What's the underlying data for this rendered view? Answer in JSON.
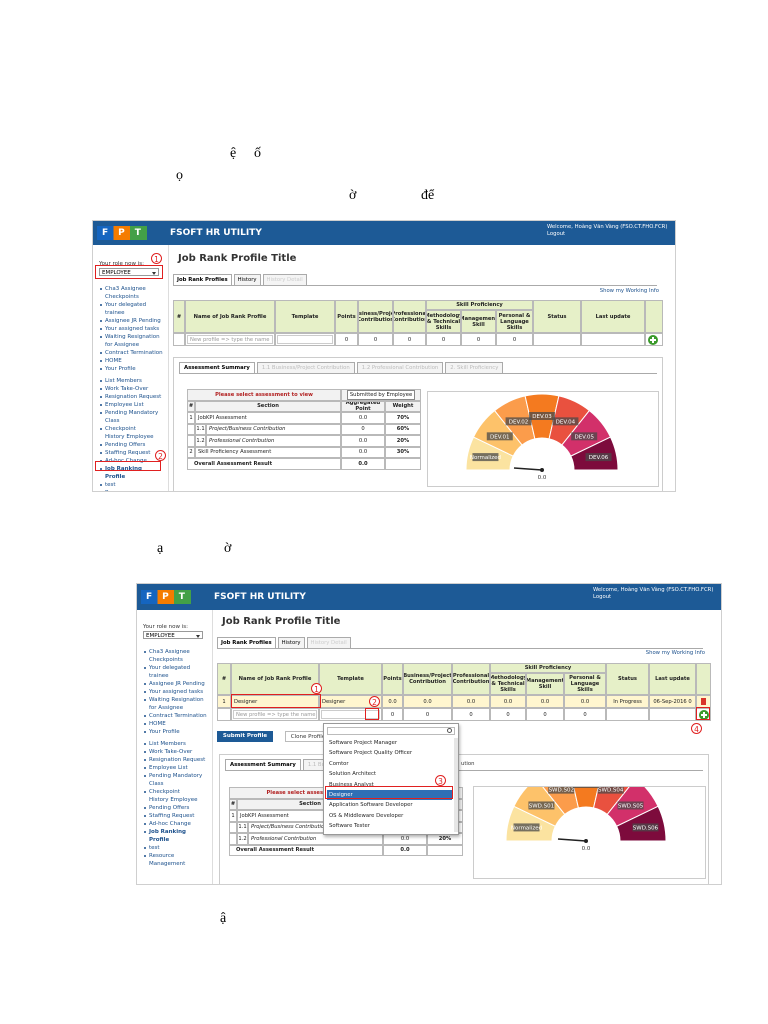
{
  "fragments": [
    "ệ",
    "ố",
    "ọ",
    "ờ",
    "để",
    "ạ",
    "ờ",
    "ậ"
  ],
  "screenshot_1": {
    "logo": "FPT",
    "brand": "FSOFT HR UTILITY",
    "welcome": "Welcome, Hoàng Văn Vàng (FSO.CT.FHO.FCR)",
    "logout": "Logout",
    "role_label": "Your role now is:",
    "role": "EMPLOYEE",
    "menu_1": [
      "Cha3 Assignee Checkpoints",
      "Your delegated trainee",
      "Assignee JR Pending",
      "Your assigned tasks",
      "Waiting Resignation for Assignee",
      "Contract Termination",
      "HOME",
      "Your Profile"
    ],
    "menu_2": [
      "List Members",
      "Work Take-Over",
      "Resignation Request",
      "Employee List",
      "Pending Mandatory Class",
      "Checkpoint History Employee",
      "Pending Offers",
      "Staffing Request",
      "Ad-hoc Change",
      "Job Ranking Profile",
      "test",
      "Resource Management"
    ],
    "page_title": "Job Rank Profile Title",
    "tabs": [
      "Job Rank Profiles",
      "History",
      "History Detail"
    ],
    "show_link": "Show my Working Info",
    "skill_group": "Skill Proficiency",
    "table_header": [
      "#",
      "Name of Job Rank Profile",
      "Template",
      "Points",
      "Business/Project Contribution",
      "Professional Contribution",
      "Methodology & Technical Skills",
      "Management Skill",
      "Personal & Language Skills",
      "Status",
      "Last update"
    ],
    "new_row": {
      "name": "New profile => type the name",
      "values": [
        "0",
        "0",
        "0",
        "0",
        "0",
        "0"
      ]
    },
    "panel_tabs": [
      "Assessment Summary",
      "1.1 Business/Project Contribution",
      "1.2 Professional Contribution",
      "2. Skill Proficiency"
    ],
    "select_prompt": "Please select assessment to view",
    "submitted_by": "Submitted by Employee",
    "assessment_header": [
      "#",
      "Section",
      "Aggregated Point",
      "Weight"
    ],
    "assessment_rows": [
      [
        "1",
        "JobKPI Assessment",
        "0.0",
        "70%"
      ],
      [
        "1.1",
        "Project/Business Contribution",
        "0",
        "60%"
      ],
      [
        "1.2",
        "Professional Contribution",
        "0.0",
        "20%"
      ],
      [
        "2",
        "Skill Proficiency Assessment",
        "0.0",
        "30%"
      ]
    ],
    "overall": [
      "Overall Assessment Result",
      "0.0"
    ],
    "gauge_labels": [
      "Normalized",
      "DEV.01",
      "DEV.02",
      "DEV.03",
      "DEV.04",
      "DEV.05",
      "DEV.06"
    ],
    "gauge_value": "0.0",
    "callouts": [
      "1",
      "2"
    ]
  },
  "screenshot_2": {
    "logo": "FPT",
    "brand": "FSOFT HR UTILITY",
    "welcome": "Welcome, Hoàng Văn Vàng (FSO.CT.FHO.FCR)",
    "logout": "Logout",
    "role_label": "Your role now is:",
    "role": "EMPLOYEE",
    "menu_1": [
      "Cha3 Assignee Checkpoints",
      "Your delegated trainee",
      "Assignee JR Pending",
      "Your assigned tasks",
      "Waiting Resignation for Assignee",
      "Contract Termination",
      "HOME",
      "Your Profile"
    ],
    "menu_2": [
      "List Members",
      "Work Take-Over",
      "Resignation Request",
      "Employee List",
      "Pending Mandatory Class",
      "Checkpoint History Employee",
      "Pending Offers",
      "Staffing Request",
      "Ad-hoc Change",
      "Job Ranking Profile",
      "test",
      "Resource Management"
    ],
    "page_title": "Job Rank Profile Title",
    "tabs": [
      "Job Rank Profiles",
      "History",
      "History Detail"
    ],
    "show_link": "Show my Working Info",
    "skill_group": "Skill Proficiency",
    "table_header": [
      "#",
      "Name of Job Rank Profile",
      "Template",
      "Points",
      "Business/Project Contribution",
      "Professional Contribution",
      "Methodology & Technical Skills",
      "Management Skill",
      "Personal & Language Skills",
      "Status",
      "Last update"
    ],
    "rows": [
      [
        "1",
        "Designer",
        "Designer",
        "0.0",
        "0.0",
        "0.0",
        "0.0",
        "0.0",
        "0.0",
        "In Progress",
        "06-Sep-2016 0"
      ]
    ],
    "new_row": {
      "name": "New profile => type the name",
      "values": [
        "0",
        "0",
        "0",
        "0",
        "0",
        "0"
      ]
    },
    "buttons": [
      "Submit Profile",
      "Clone Profile"
    ],
    "dropdown": [
      "Software Project Manager",
      "Software Project Quality Officer",
      "Comtor",
      "Solution Architect",
      "Business Analyst",
      "Designer",
      "Application Software Developer",
      "OS & Middleware Developer",
      "Software Tester"
    ],
    "dropdown_selected": "Designer",
    "panel_tabs": [
      "Assessment Summary",
      "1.1 Busi"
    ],
    "panel_tab_tail": "ution",
    "select_prompt": "Please select assessment t",
    "assessment_header": [
      "#",
      "Section"
    ],
    "assessment_rows": [
      [
        "1",
        "JobKPI Assessment"
      ],
      [
        "1.1",
        "Project/Business Contributio",
        "0",
        "60%"
      ],
      [
        "1.2",
        "Professional Contribution",
        "0.0",
        "20%"
      ]
    ],
    "overall": [
      "Overall Assessment Result",
      "0.0"
    ],
    "gauge_labels": [
      "Normalized",
      "SWD.S01",
      "SWD.S02",
      "SWD.S03",
      "SWD.S04",
      "SWD.S05",
      "SWD.S06"
    ],
    "gauge_value": "0.0",
    "callouts": [
      "1",
      "2",
      "3",
      "4"
    ]
  }
}
